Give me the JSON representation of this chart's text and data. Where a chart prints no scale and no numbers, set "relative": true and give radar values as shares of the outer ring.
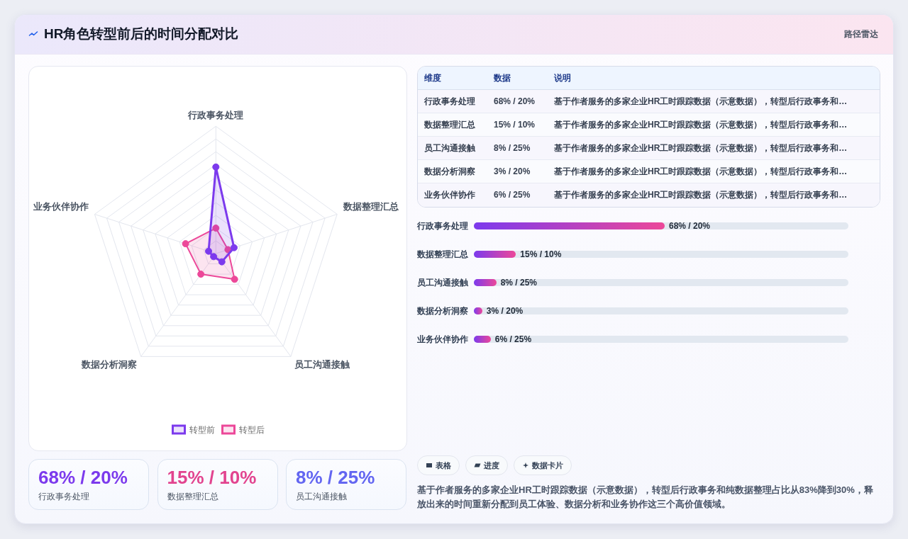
{
  "chart_data": [
    {
      "type": "other",
      "title": "HR角色转型前后的时间分配对比",
      "annotations": [
        "路径雷达"
      ]
    },
    {
      "type": "radar",
      "categories": [
        "行政事务处理",
        "数据整理汇总",
        "员工沟通接触",
        "数据分析洞察",
        "业务伙伴协作"
      ],
      "relative": true,
      "grid": true,
      "legend": "bottom",
      "marker": "circle",
      "series": [
        {
          "name": "转型前",
          "color": "#7c3aed",
          "values": [
            0.68,
            0.15,
            0.08,
            0.03,
            0.06
          ]
        },
        {
          "name": "转型后",
          "color": "#ec4899",
          "values": [
            0.2,
            0.1,
            0.25,
            0.2,
            0.25
          ]
        }
      ]
    },
    {
      "type": "other",
      "categories": [
        "行政事务处理",
        "数据整理汇总",
        "员工沟通接触",
        "数据分析洞察",
        "业务伙伴协作"
      ],
      "annotations": [
        "维度",
        "数据",
        "说明",
        "68% / 20%",
        "15% / 10%",
        "8% / 25%",
        "3% / 20%",
        "6% / 25%",
        "基于作者服务的多家企业HR工时跟踪数据（示意数据），转型后行政事务和…",
        "基于作者服务的多家企业HR工时跟踪数据（示意数据），转型后行政事务和…",
        "基于作者服务的多家企业HR工时跟踪数据（示意数据），转型后行政事务和…",
        "基于作者服务的多家企业HR工时跟踪数据（示意数据），转型后行政事务和…",
        "基于作者服务的多家企业HR工时跟踪数据（示意数据），转型后行政事务和…"
      ]
    },
    {
      "type": "bar",
      "orientation": "horizontal",
      "categories": [
        "行政事务处理",
        "数据整理汇总",
        "员工沟通接触",
        "数据分析洞察",
        "业务伙伴协作"
      ],
      "values": [
        68,
        15,
        8,
        3,
        6
      ],
      "color": "#7c3aed",
      "value_labels": [
        "68% / 20%",
        "15% / 10%",
        "8% / 25%",
        "3% / 20%",
        "6% / 25%"
      ]
    },
    {
      "type": "other",
      "categories": [
        "行政事务处理",
        "数据整理汇总",
        "员工沟通接触"
      ],
      "annotations": [
        "68% / 20%",
        "15% / 10%",
        "8% / 25%"
      ]
    },
    {
      "type": "other",
      "annotations": [
        "表格",
        "进度",
        "数据卡片",
        "基于作者服务的多家企业HR工时跟踪数据（示意数据），转型后行政事务和纯数据整理占比从83%降到30%，释放出来的时间重新分配到员工体验、数据分析和业务协作这三个高价值领域。"
      ]
    }
  ]
}
